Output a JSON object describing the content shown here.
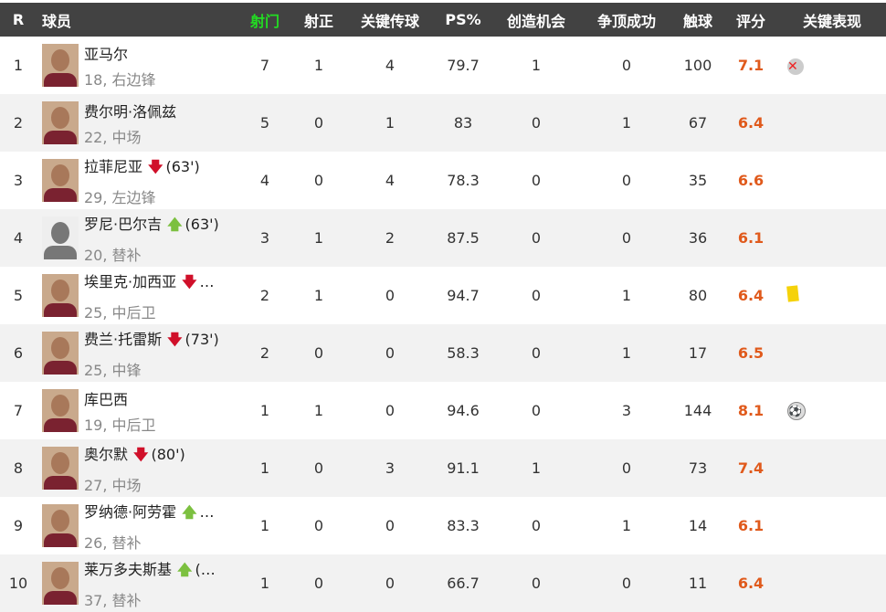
{
  "headers": {
    "rank": "R",
    "player": "球员",
    "shots": "射门",
    "on_target": "射正",
    "key_passes": "关键传球",
    "ps": "PS%",
    "chances": "创造机会",
    "aerials": "争顶成功",
    "touches": "触球",
    "rating": "评分",
    "key_events": "关键表现"
  },
  "active_column": "shots",
  "rows": [
    {
      "rank": "1",
      "name": "亚马尔",
      "sub": "",
      "info": "18, 右边锋",
      "shots": "7",
      "on_target": "1",
      "key_passes": "4",
      "ps": "79.7",
      "chances": "1",
      "aerials": "0",
      "touches": "100",
      "rating": "7.1",
      "event": "missed-shot-icon"
    },
    {
      "rank": "2",
      "name": "费尔明·洛佩兹",
      "sub": "",
      "info": "22, 中场",
      "shots": "5",
      "on_target": "0",
      "key_passes": "1",
      "ps": "83",
      "chances": "0",
      "aerials": "1",
      "touches": "67",
      "rating": "6.4",
      "event": ""
    },
    {
      "rank": "3",
      "name": "拉菲尼亚",
      "sub": "down",
      "sub_text": "(63')",
      "info": "29, 左边锋",
      "shots": "4",
      "on_target": "0",
      "key_passes": "4",
      "ps": "78.3",
      "chances": "0",
      "aerials": "0",
      "touches": "35",
      "rating": "6.6",
      "event": ""
    },
    {
      "rank": "4",
      "name": "罗尼·巴尔吉",
      "sub": "up",
      "sub_text": "(63')",
      "info": "20, 替补",
      "shots": "3",
      "on_target": "1",
      "key_passes": "2",
      "ps": "87.5",
      "chances": "0",
      "aerials": "0",
      "touches": "36",
      "rating": "6.1",
      "event": ""
    },
    {
      "rank": "5",
      "name": "埃里克·加西亚",
      "sub": "down",
      "sub_text": "…",
      "info": "25, 中后卫",
      "shots": "2",
      "on_target": "1",
      "key_passes": "0",
      "ps": "94.7",
      "chances": "0",
      "aerials": "1",
      "touches": "80",
      "rating": "6.4",
      "event": "yellow-card-icon"
    },
    {
      "rank": "6",
      "name": "费兰·托雷斯",
      "sub": "down",
      "sub_text": "(73')",
      "info": "25, 中锋",
      "shots": "2",
      "on_target": "0",
      "key_passes": "0",
      "ps": "58.3",
      "chances": "0",
      "aerials": "1",
      "touches": "17",
      "rating": "6.5",
      "event": ""
    },
    {
      "rank": "7",
      "name": "库巴西",
      "sub": "",
      "info": "19, 中后卫",
      "shots": "1",
      "on_target": "1",
      "key_passes": "0",
      "ps": "94.6",
      "chances": "0",
      "aerials": "3",
      "touches": "144",
      "rating": "8.1",
      "event": "ball-icon"
    },
    {
      "rank": "8",
      "name": "奥尔默",
      "sub": "down",
      "sub_text": "(80')",
      "info": "27, 中场",
      "shots": "1",
      "on_target": "0",
      "key_passes": "3",
      "ps": "91.1",
      "chances": "1",
      "aerials": "0",
      "touches": "73",
      "rating": "7.4",
      "event": ""
    },
    {
      "rank": "9",
      "name": "罗纳德·阿劳霍",
      "sub": "up",
      "sub_text": "…",
      "info": "26, 替补",
      "shots": "1",
      "on_target": "0",
      "key_passes": "0",
      "ps": "83.3",
      "chances": "0",
      "aerials": "1",
      "touches": "14",
      "rating": "6.1",
      "event": ""
    },
    {
      "rank": "10",
      "name": "莱万多夫斯基",
      "sub": "up",
      "sub_text": "(…",
      "info": "37, 替补",
      "shots": "1",
      "on_target": "0",
      "key_passes": "0",
      "ps": "66.7",
      "chances": "0",
      "aerials": "0",
      "touches": "11",
      "rating": "6.4",
      "event": ""
    }
  ],
  "colors": {
    "header_bg": "#424242",
    "active_header": "#22dd22",
    "rating": "#e05a1c",
    "sub_off": "#d0102a",
    "sub_on": "#7cc040"
  }
}
